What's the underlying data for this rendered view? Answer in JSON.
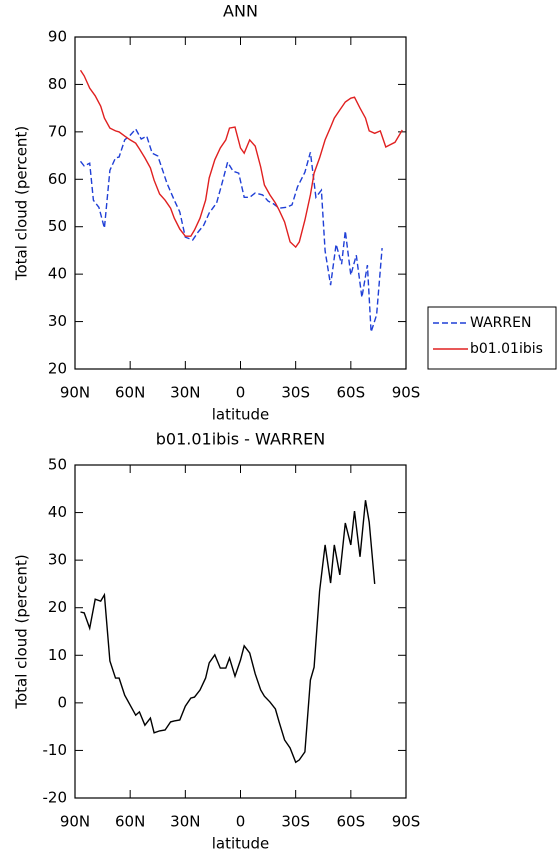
{
  "chart_data": [
    {
      "type": "line",
      "title": "ANN",
      "xlabel": "latitude",
      "ylabel": "Total cloud (percent)",
      "xlim": [
        90,
        -90
      ],
      "xticks": [
        {
          "value": 90,
          "label": "90N"
        },
        {
          "value": 60,
          "label": "60N"
        },
        {
          "value": 30,
          "label": "30N"
        },
        0,
        {
          "value": -30,
          "label": "30S"
        },
        {
          "value": -60,
          "label": "60S"
        },
        {
          "value": -90,
          "label": "90S"
        }
      ],
      "ylim": [
        20,
        90
      ],
      "yticks": [
        20,
        30,
        40,
        50,
        60,
        70,
        80,
        90
      ],
      "legend": "outside-right",
      "series": [
        {
          "name": "WARREN",
          "color": "#1f3fd6",
          "dashed": true,
          "x": [
            87,
            85,
            82,
            80,
            77,
            74,
            71,
            68,
            66,
            63,
            60,
            57,
            54,
            51,
            48,
            45,
            42,
            40,
            36,
            33,
            30,
            26,
            23,
            20,
            17,
            13,
            10,
            7,
            4,
            1,
            -2,
            -5,
            -8,
            -12,
            -15,
            -18,
            -21,
            -25,
            -28,
            -31,
            -35,
            -38,
            -41,
            -44,
            -46,
            -49,
            -52,
            -55,
            -57,
            -60,
            -63,
            -66,
            -69,
            -71,
            -74,
            -77
          ],
          "values": [
            63.8,
            62.8,
            63.4,
            55.6,
            54.1,
            49.7,
            61.9,
            64.5,
            64.7,
            68.3,
            69.3,
            70.6,
            68.5,
            69.1,
            65.5,
            64.9,
            61.5,
            59.2,
            55.6,
            53.1,
            47.8,
            47.2,
            48.9,
            50.3,
            52.9,
            55,
            59.2,
            63.6,
            61.7,
            61.3,
            56.2,
            56.2,
            57.1,
            56.7,
            55.4,
            54.8,
            53.9,
            54.1,
            54.6,
            58.4,
            61.5,
            65.7,
            56.2,
            57.7,
            44.9,
            37.7,
            46.3,
            42.1,
            49.1,
            39.8,
            44,
            35.1,
            41.9,
            27.8,
            31.4,
            45.5
          ]
        },
        {
          "name": "b01.01ibis",
          "color": "#e02020",
          "dashed": false,
          "x": [
            87,
            85,
            82,
            79,
            76,
            74,
            71,
            68,
            66,
            63,
            60,
            57,
            55,
            52,
            49,
            47,
            44,
            41,
            38,
            36,
            33,
            30,
            27,
            25,
            22,
            19,
            17,
            14,
            11,
            8,
            6,
            3,
            0,
            -2,
            -5,
            -8,
            -11,
            -13,
            -16,
            -19,
            -21,
            -24,
            -27,
            -30,
            -32,
            -35,
            -38,
            -40,
            -43,
            -46,
            -49,
            -51,
            -54,
            -57,
            -60,
            -62,
            -65,
            -68,
            -70,
            -73,
            -76,
            -79,
            -81,
            -84,
            -88
          ],
          "values": [
            83,
            81.8,
            79.2,
            77.6,
            75.4,
            72.9,
            70.8,
            70.2,
            70,
            69.1,
            68.3,
            67.6,
            66.4,
            64.5,
            62.4,
            59.8,
            56.9,
            55.6,
            53.9,
            51.8,
            49.5,
            48,
            48,
            49.3,
            51.8,
            55.6,
            60.3,
            64.1,
            66.6,
            68.3,
            70.8,
            71,
            66.6,
            65.5,
            68.3,
            67,
            62.6,
            58.8,
            56.7,
            55,
            53.5,
            51,
            46.8,
            45.7,
            46.8,
            51.4,
            56.7,
            61.3,
            64.5,
            68.3,
            71,
            72.9,
            74.6,
            76.3,
            77.1,
            77.3,
            75,
            72.9,
            70.2,
            69.7,
            70.2,
            66.8,
            67.2,
            67.8,
            70.4
          ]
        }
      ]
    },
    {
      "type": "line",
      "title": "b01.01ibis - WARREN",
      "xlabel": "latitude",
      "ylabel": "Total cloud (percent)",
      "xlim": [
        90,
        -90
      ],
      "xticks": [
        {
          "value": 90,
          "label": "90N"
        },
        {
          "value": 60,
          "label": "60N"
        },
        {
          "value": 30,
          "label": "30N"
        },
        0,
        {
          "value": -30,
          "label": "30S"
        },
        {
          "value": -60,
          "label": "60S"
        },
        {
          "value": -90,
          "label": "90S"
        }
      ],
      "ylim": [
        -20,
        50
      ],
      "yticks": [
        -20,
        -10,
        0,
        10,
        20,
        30,
        40,
        50
      ],
      "series": [
        {
          "color": "#000000",
          "dashed": false,
          "x": [
            87,
            85,
            82,
            79,
            76,
            74,
            71,
            68,
            66,
            63,
            60,
            57,
            55,
            52,
            49,
            47,
            44,
            41,
            38,
            36,
            33,
            30,
            27,
            25,
            22,
            19,
            17,
            14,
            11,
            8,
            6,
            3,
            0,
            -2,
            -5,
            -8,
            -11,
            -13,
            -16,
            -19,
            -21,
            -24,
            -27,
            -30,
            -32,
            -35,
            -38,
            -40,
            -43,
            -46,
            -49,
            -51,
            -54,
            -57,
            -60,
            -62,
            -65,
            -68,
            -70,
            -73
          ],
          "values": [
            19.1,
            18.9,
            15.7,
            21.8,
            21.4,
            22.7,
            8.8,
            5.2,
            5.2,
            1.6,
            -0.5,
            -2.6,
            -1.9,
            -4.7,
            -3.2,
            -6.3,
            -5.9,
            -5.7,
            -4.0,
            -3.8,
            -3.6,
            -0.7,
            1.0,
            1.2,
            2.7,
            5.2,
            8.4,
            10.1,
            7.3,
            7.3,
            9.4,
            5.6,
            9.0,
            12.0,
            10.5,
            6.1,
            2.7,
            1.4,
            0.2,
            -1.3,
            -4.0,
            -7.8,
            -9.5,
            -12.5,
            -12.0,
            -10.3,
            4.8,
            7.5,
            23.5,
            33.2,
            25.2,
            33.2,
            26.9,
            37.8,
            33.2,
            40.3,
            30.7,
            42.6,
            38.0,
            25.0
          ]
        }
      ]
    }
  ]
}
